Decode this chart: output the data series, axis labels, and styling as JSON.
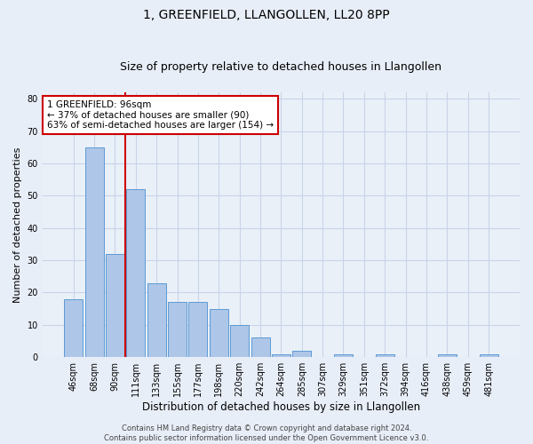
{
  "title": "1, GREENFIELD, LLANGOLLEN, LL20 8PP",
  "subtitle": "Size of property relative to detached houses in Llangollen",
  "xlabel": "Distribution of detached houses by size in Llangollen",
  "ylabel": "Number of detached properties",
  "bar_labels": [
    "46sqm",
    "68sqm",
    "90sqm",
    "111sqm",
    "133sqm",
    "155sqm",
    "177sqm",
    "198sqm",
    "220sqm",
    "242sqm",
    "264sqm",
    "285sqm",
    "307sqm",
    "329sqm",
    "351sqm",
    "372sqm",
    "394sqm",
    "416sqm",
    "438sqm",
    "459sqm",
    "481sqm"
  ],
  "bar_values": [
    18,
    65,
    32,
    52,
    23,
    17,
    17,
    15,
    10,
    6,
    1,
    2,
    0,
    1,
    0,
    1,
    0,
    0,
    1,
    0,
    1
  ],
  "bar_color": "#aec6e8",
  "bar_edge_color": "#5b9bd5",
  "highlight_line_color": "#cc0000",
  "annotation_text": "1 GREENFIELD: 96sqm\n← 37% of detached houses are smaller (90)\n63% of semi-detached houses are larger (154) →",
  "annotation_box_color": "#ffffff",
  "annotation_box_edge": "#cc0000",
  "ylim": [
    0,
    82
  ],
  "yticks": [
    0,
    10,
    20,
    30,
    40,
    50,
    60,
    70,
    80
  ],
  "grid_color": "#c8d4e8",
  "background_color": "#e8eef8",
  "plot_bg_color": "#eaf0f8",
  "footer_text": "Contains HM Land Registry data © Crown copyright and database right 2024.\nContains public sector information licensed under the Open Government Licence v3.0.",
  "title_fontsize": 10,
  "subtitle_fontsize": 9,
  "tick_fontsize": 7,
  "ylabel_fontsize": 8,
  "xlabel_fontsize": 8.5,
  "footer_fontsize": 6
}
